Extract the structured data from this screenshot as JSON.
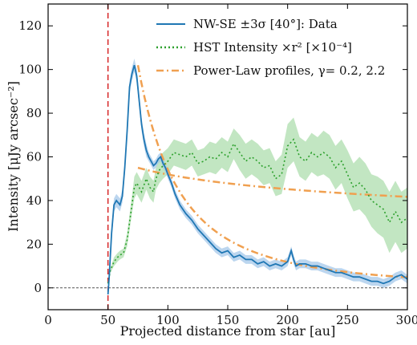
{
  "chart_data": {
    "type": "line",
    "title": "",
    "xlabel": "Projected distance from star [au]",
    "ylabel": "Intensity [μJy arcsec⁻²]",
    "xlim": [
      0,
      300
    ],
    "ylim": [
      -10,
      130
    ],
    "xticks": [
      0,
      50,
      100,
      150,
      200,
      250,
      300
    ],
    "yticks": [
      0,
      20,
      40,
      60,
      80,
      100,
      120
    ],
    "grid": false,
    "legend_position": "top-right",
    "reference_lines": {
      "vertical_x": 50,
      "vertical_color": "#d62728",
      "horizontal_y": 0,
      "horizontal_color": "#555555"
    },
    "series": [
      {
        "name": "NW-SE ±3σ [40°]: Data",
        "style": "solid",
        "color": "#1f77b4",
        "band_color": "#9fc5e8",
        "x": [
          50,
          51,
          53,
          55,
          57,
          60,
          62,
          64,
          66,
          68,
          70,
          72,
          74,
          76,
          78,
          80,
          82,
          84,
          86,
          88,
          90,
          92,
          94,
          96,
          98,
          100,
          103,
          106,
          110,
          115,
          120,
          125,
          130,
          135,
          140,
          145,
          150,
          155,
          160,
          165,
          170,
          175,
          180,
          185,
          190,
          195,
          200,
          203,
          205,
          207,
          210,
          215,
          220,
          225,
          230,
          235,
          240,
          245,
          250,
          255,
          260,
          265,
          270,
          275,
          280,
          285,
          290,
          295,
          300
        ],
        "y": [
          -3,
          5,
          25,
          38,
          40,
          38,
          42,
          55,
          72,
          92,
          98,
          102,
          97,
          86,
          75,
          68,
          63,
          60,
          58,
          56,
          57,
          59,
          60,
          57,
          55,
          52,
          48,
          43,
          38,
          34,
          31,
          27,
          24,
          21,
          18,
          16,
          17,
          14,
          15,
          13,
          13,
          11,
          12,
          10,
          11,
          10,
          12,
          17,
          13,
          10,
          11,
          11,
          10,
          10,
          9,
          8,
          7,
          7,
          6,
          5,
          5,
          4,
          3,
          3,
          2,
          3,
          5,
          6,
          4
        ],
        "err": [
          1,
          1,
          3,
          3,
          3,
          3,
          3,
          3,
          3,
          3,
          3,
          3,
          3,
          3,
          3,
          3,
          3,
          2,
          2,
          2,
          2,
          2,
          2,
          2,
          2,
          2,
          2,
          2,
          2,
          2,
          2,
          2,
          2,
          2,
          2,
          2,
          2,
          2,
          2,
          2,
          2,
          2,
          2,
          2,
          2,
          2,
          2,
          2,
          2,
          2,
          2,
          2,
          2,
          2,
          2,
          2,
          2,
          2,
          2,
          2,
          2,
          2,
          2,
          2,
          2,
          2,
          2,
          2,
          2
        ]
      },
      {
        "name": "HST Intensity ×r² [×10⁻⁴]",
        "style": "dotted",
        "color": "#2ca02c",
        "band_color": "#a8dba8",
        "x": [
          50,
          52,
          55,
          58,
          60,
          63,
          66,
          70,
          72,
          74,
          76,
          78,
          80,
          82,
          85,
          88,
          90,
          93,
          96,
          100,
          105,
          110,
          115,
          120,
          125,
          130,
          135,
          140,
          145,
          150,
          155,
          160,
          165,
          170,
          175,
          180,
          185,
          190,
          195,
          200,
          205,
          210,
          215,
          220,
          225,
          230,
          235,
          240,
          245,
          250,
          255,
          260,
          265,
          270,
          275,
          280,
          285,
          290,
          295,
          300
        ],
        "y": [
          2,
          8,
          12,
          14,
          15,
          16,
          22,
          38,
          46,
          48,
          46,
          44,
          47,
          50,
          46,
          44,
          50,
          54,
          56,
          58,
          62,
          61,
          60,
          62,
          57,
          58,
          60,
          59,
          62,
          60,
          66,
          62,
          58,
          60,
          58,
          55,
          56,
          50,
          52,
          65,
          68,
          60,
          58,
          62,
          60,
          62,
          60,
          55,
          58,
          52,
          46,
          48,
          45,
          40,
          38,
          36,
          30,
          35,
          30,
          32
        ],
        "err": [
          1,
          1,
          2,
          2,
          2,
          2,
          3,
          4,
          5,
          5,
          5,
          5,
          5,
          5,
          5,
          5,
          5,
          6,
          6,
          6,
          6,
          6,
          6,
          6,
          6,
          6,
          7,
          7,
          7,
          7,
          7,
          8,
          8,
          8,
          8,
          8,
          8,
          8,
          9,
          10,
          10,
          9,
          9,
          9,
          9,
          10,
          10,
          10,
          10,
          11,
          11,
          12,
          12,
          12,
          13,
          13,
          14,
          14,
          14,
          14
        ]
      },
      {
        "name": "Power-Law profiles, γ= 0.2, 2.2",
        "style": "dashdot",
        "color": "#f0a050",
        "curves": [
          {
            "gamma": 0.2,
            "x": [
              75,
              300
            ],
            "anchor": [
              75,
              55
            ]
          },
          {
            "gamma": 2.2,
            "x": [
              75,
              300
            ],
            "anchor": [
              75,
              102
            ]
          }
        ]
      }
    ]
  }
}
